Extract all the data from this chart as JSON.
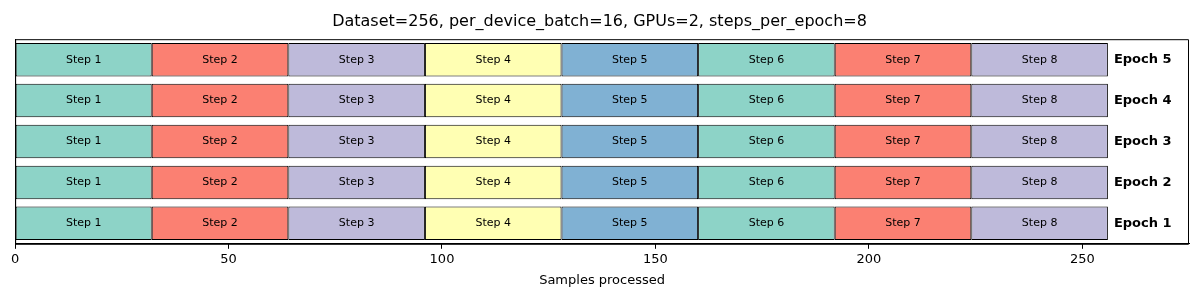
{
  "chart_data": {
    "type": "bar",
    "orientation": "horizontal",
    "stacked": true,
    "title": "Dataset=256, per_device_batch=16, GPUs=2, steps_per_epoch=8",
    "xlabel": "Samples processed",
    "categories": [
      "Epoch 5",
      "Epoch 4",
      "Epoch 3",
      "Epoch 2",
      "Epoch 1"
    ],
    "series": [
      {
        "name": "Step 1",
        "color": "#8dd3c7",
        "values": [
          32,
          32,
          32,
          32,
          32
        ]
      },
      {
        "name": "Step 2",
        "color": "#fb8072",
        "values": [
          32,
          32,
          32,
          32,
          32
        ]
      },
      {
        "name": "Step 3",
        "color": "#bebada",
        "values": [
          32,
          32,
          32,
          32,
          32
        ]
      },
      {
        "name": "Step 4",
        "color": "#ffffb3",
        "values": [
          32,
          32,
          32,
          32,
          32
        ]
      },
      {
        "name": "Step 5",
        "color": "#80b1d3",
        "values": [
          32,
          32,
          32,
          32,
          32
        ]
      },
      {
        "name": "Step 6",
        "color": "#8dd3c7",
        "values": [
          32,
          32,
          32,
          32,
          32
        ]
      },
      {
        "name": "Step 7",
        "color": "#fb8072",
        "values": [
          32,
          32,
          32,
          32,
          32
        ]
      },
      {
        "name": "Step 8",
        "color": "#bebada",
        "values": [
          32,
          32,
          32,
          32,
          32
        ]
      }
    ],
    "xlim": [
      0,
      275
    ],
    "xticks": [
      0,
      50,
      100,
      150,
      200,
      250
    ],
    "grid": false,
    "legend": false
  }
}
